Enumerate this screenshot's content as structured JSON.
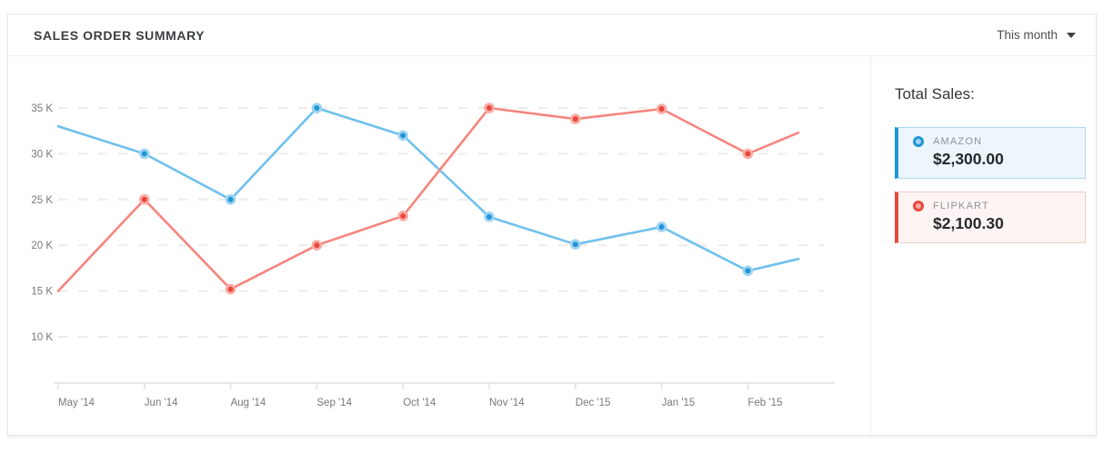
{
  "header": {
    "title": "SALES ORDER SUMMARY",
    "period_selector": {
      "value": "This month",
      "icon": "chevron-down-icon"
    }
  },
  "legend": {
    "title": "Total Sales:",
    "items": [
      {
        "name": "AMAZON",
        "total": "$2,300.00",
        "color": "#1f96d5"
      },
      {
        "name": "FLIPKART",
        "total": "$2,100.30",
        "color": "#e9473d"
      }
    ]
  },
  "chart_data": {
    "type": "line",
    "title": "Sales Order Summary",
    "unit": "K",
    "categories": [
      "May '14",
      "Jun '14",
      "Aug '14",
      "Sep '14",
      "Oct '14",
      "Nov '14",
      "Dec '15",
      "Jan '15",
      "Feb '15"
    ],
    "y_ticks": [
      {
        "label": "35 K",
        "value": 35
      },
      {
        "label": "30 K",
        "value": 30
      },
      {
        "label": "25 K",
        "value": 25
      },
      {
        "label": "20 K",
        "value": 20
      },
      {
        "label": "15 K",
        "value": 15
      },
      {
        "label": "10 K",
        "value": 10
      }
    ],
    "ylim": [
      5,
      37.5
    ],
    "grid": "horizontal-dashed",
    "legend_position": "right-panel",
    "series": [
      {
        "name": "AMAZON",
        "line_color": "#70c1ec",
        "marker_fill": "#1f96d5",
        "marker_ring": "#9ed3f1",
        "values": [
          33,
          30,
          25,
          35,
          32,
          23.1,
          20.1,
          22,
          17.2
        ],
        "trailing_partial_value": 18.5
      },
      {
        "name": "FLIPKART",
        "line_color": "#f5857d",
        "marker_fill": "#e9473d",
        "marker_ring": "#f8aba4",
        "values": [
          15,
          25,
          15.2,
          20,
          23.2,
          35,
          33.8,
          34.9,
          30
        ],
        "trailing_partial_value": 32.3
      }
    ],
    "style": {
      "grid_color": "#ececec",
      "axis_color": "#e0e0e0",
      "tick_label_color": "#75797d"
    }
  }
}
